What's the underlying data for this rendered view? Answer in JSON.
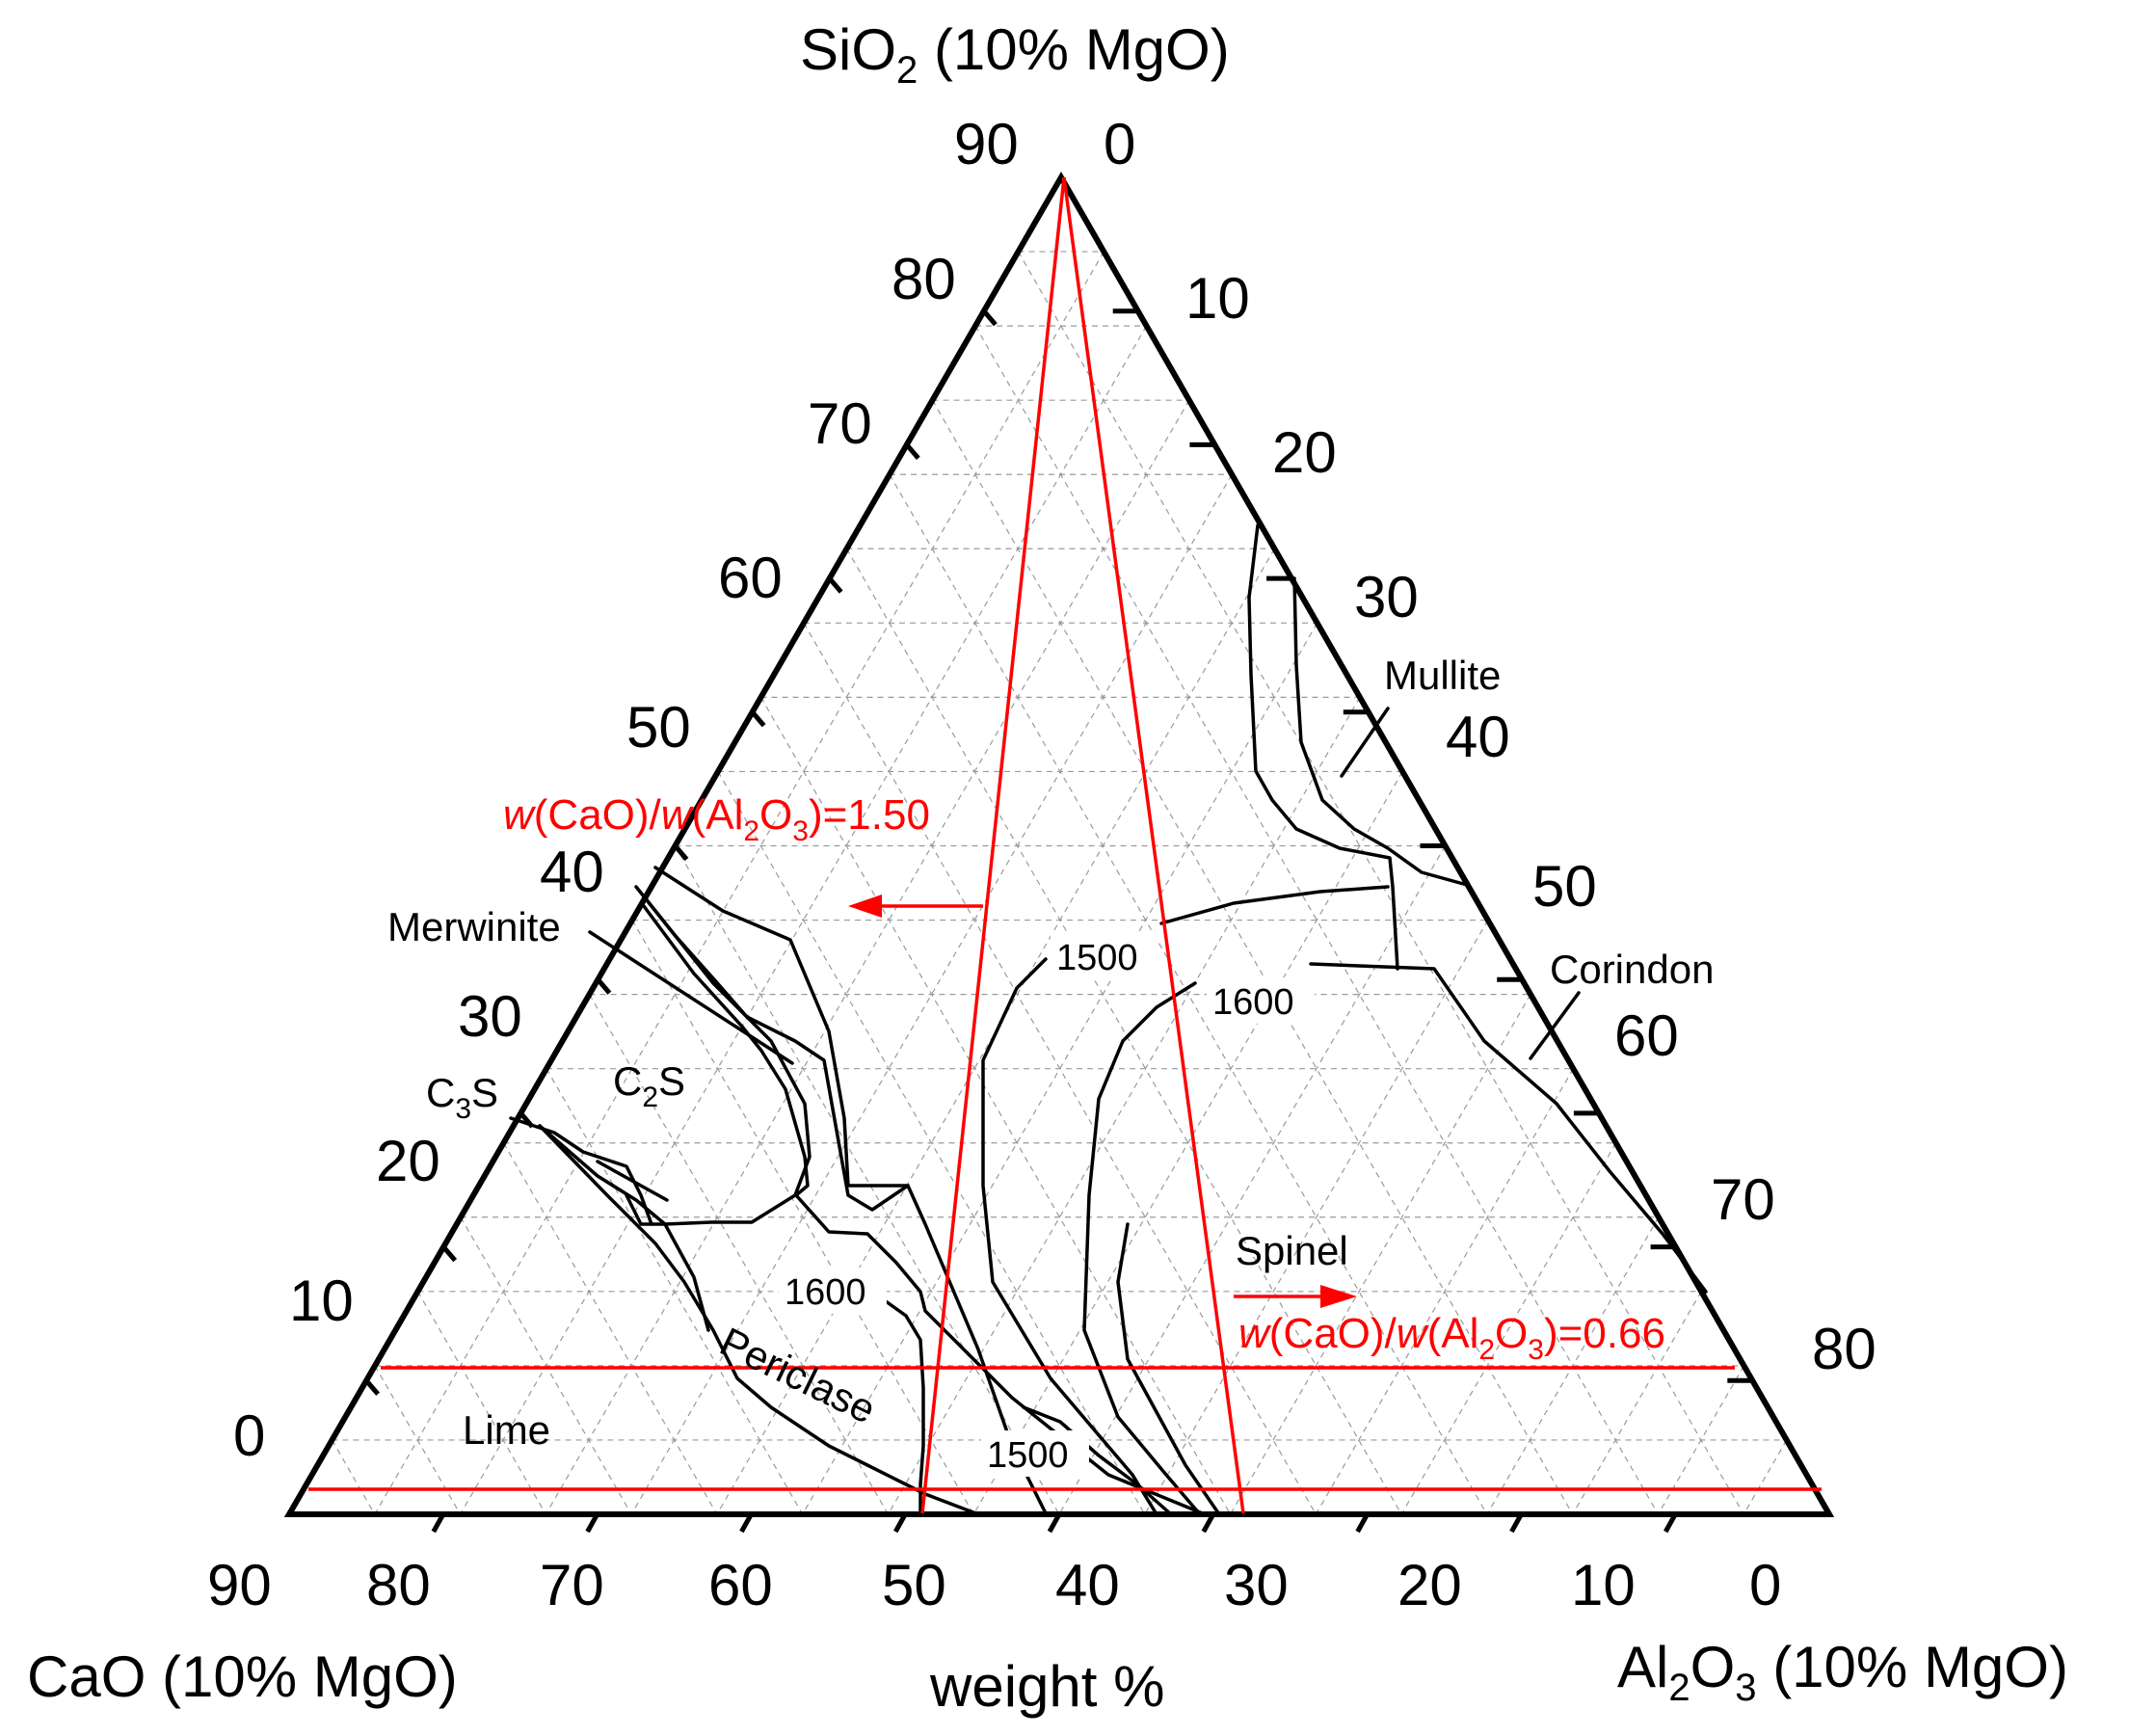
{
  "chart_data": {
    "type": "ternary",
    "subtitle": "weight %",
    "colors": {
      "lines": "#000000",
      "red": "#ff0000",
      "grid": "#9a9a9a"
    },
    "axes": {
      "top": {
        "label": "SiO",
        "sub": "2",
        "rest": " (10% MgO)",
        "ticks": [
          "90",
          "80",
          "70",
          "60",
          "50",
          "40",
          "30",
          "20",
          "10",
          "0"
        ]
      },
      "right": {
        "ticks": [
          "0",
          "10",
          "20",
          "30",
          "40",
          "50",
          "60",
          "70",
          "80"
        ]
      },
      "left": {
        "label": "CaO (10% MgO)"
      },
      "bottom": {
        "ticks": [
          "90",
          "80",
          "70",
          "60",
          "50",
          "40",
          "30",
          "20",
          "10",
          "0"
        ]
      },
      "al2o3": {
        "a": "Al",
        "b": "2",
        "c": "O",
        "d": "3",
        "rest": " (10% MgO)"
      }
    },
    "phase_labels": {
      "mullite": "Mullite",
      "corindon": "Corindon",
      "merwinite": "Merwinite",
      "c3s": {
        "a": "C",
        "b": "3",
        "c": "S"
      },
      "c2s": {
        "a": "C",
        "b": "2",
        "c": "S"
      },
      "spinel": "Spinel",
      "periclase": "Periclase",
      "lime": "Lime"
    },
    "isotherms": {
      "t1500_upper": "1500",
      "t1600_upper": "1600",
      "t1600_lower": "1600",
      "t1500_lower": "1500"
    },
    "ratio_lines": [
      {
        "w1": "w",
        "p1": "(CaO)/",
        "w2": "w",
        "p2": "(Al",
        "s1": "2",
        "p3": "O",
        "s2": "3",
        "p4": ")=1.50"
      },
      {
        "w1": "w",
        "p1": "(CaO)/",
        "w2": "w",
        "p2": "(Al",
        "s1": "2",
        "p3": "O",
        "s2": "3",
        "p4": ")=0.66"
      }
    ]
  }
}
